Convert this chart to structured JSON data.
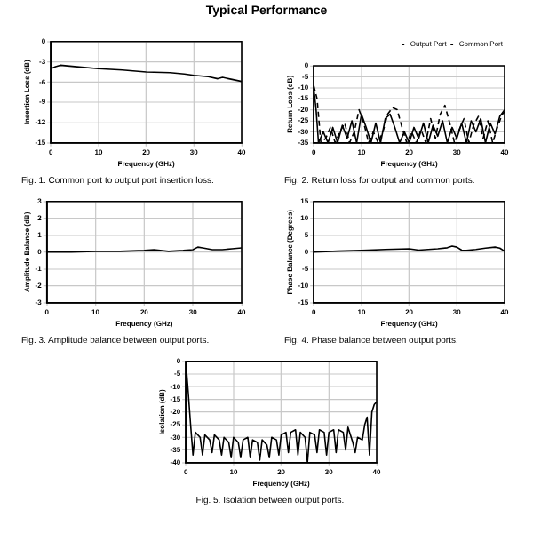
{
  "chart_data": [
    {
      "type": "other",
      "title": "Typical Performance"
    },
    {
      "type": "line",
      "xlabel": "Frequency (GHz)",
      "ylabel": "Insertion Loss (dB)",
      "xlim": [
        0,
        40
      ],
      "xticks": [
        0,
        10,
        20,
        30,
        40
      ],
      "ylim": [
        -15,
        0
      ],
      "yticks": [
        -15,
        -12,
        -9,
        -6,
        -3,
        0
      ],
      "grid": true,
      "marker": "none",
      "annotations": [
        "Fig. 1.  Common port to output port insertion loss."
      ],
      "series": [
        {
          "color": "#000000",
          "x": [
            0,
            1,
            2,
            5,
            10,
            15,
            20,
            25,
            28,
            30,
            33,
            35,
            36,
            38,
            40
          ],
          "values": [
            -4,
            -3.7,
            -3.5,
            -3.7,
            -4,
            -4.2,
            -4.5,
            -4.6,
            -4.8,
            -5,
            -5.2,
            -5.5,
            -5.3,
            -5.6,
            -5.9
          ]
        }
      ]
    },
    {
      "type": "line",
      "xlabel": "Frequency (GHz)",
      "ylabel": "Return Loss (dB)",
      "xlim": [
        0,
        40
      ],
      "xticks": [
        0,
        10,
        20,
        30,
        40
      ],
      "ylim": [
        -35,
        0
      ],
      "yticks": [
        -35,
        -30,
        -25,
        -20,
        -15,
        -10,
        -5,
        0
      ],
      "grid": true,
      "marker": "none",
      "legend": "top right",
      "annotations": [
        "Fig. 2.  Return loss for output and common ports."
      ],
      "series": [
        {
          "name": "Output Port",
          "color": "#000000",
          "line_style": "solid",
          "x": [
            0,
            0.5,
            1,
            2,
            3,
            4,
            5,
            6,
            7,
            8,
            9,
            10,
            11,
            12,
            13,
            14,
            15,
            16,
            17,
            18,
            19,
            20,
            21,
            22,
            23,
            24,
            25,
            26,
            27,
            28,
            29,
            30,
            31,
            32,
            33,
            34,
            35,
            36,
            37,
            38,
            39,
            40
          ],
          "values": [
            -10,
            -20,
            -35,
            -30,
            -35,
            -28,
            -35,
            -27,
            -33,
            -25,
            -35,
            -22,
            -28,
            -35,
            -26,
            -35,
            -24,
            -22,
            -28,
            -35,
            -30,
            -35,
            -28,
            -33,
            -26,
            -35,
            -27,
            -32,
            -25,
            -35,
            -28,
            -33,
            -26,
            -35,
            -25,
            -30,
            -24,
            -35,
            -26,
            -31,
            -23,
            -20
          ]
        },
        {
          "name": "Common Port",
          "color": "#000000",
          "line_style": "dashed",
          "x": [
            0,
            0.7,
            1.5,
            2.5,
            3.5,
            4.5,
            5.5,
            6.5,
            7.5,
            8.5,
            9.5,
            10.5,
            11.5,
            12.5,
            13.5,
            14.5,
            15.5,
            16.5,
            17.5,
            18.5,
            19.5,
            20.5,
            21.5,
            22.5,
            23.5,
            24.5,
            25.5,
            26.5,
            27.5,
            28.5,
            29.5,
            30.5,
            31.5,
            32.5,
            33.5,
            34.5,
            35.5,
            36.5,
            37.5,
            38.5,
            39.5,
            40
          ],
          "values": [
            -9,
            -15,
            -35,
            -33,
            -28,
            -35,
            -30,
            -26,
            -35,
            -30,
            -20,
            -26,
            -35,
            -30,
            -35,
            -30,
            -22,
            -19,
            -20,
            -28,
            -35,
            -30,
            -35,
            -29,
            -35,
            -24,
            -33,
            -22,
            -18,
            -26,
            -35,
            -29,
            -24,
            -35,
            -27,
            -23,
            -33,
            -25,
            -35,
            -28,
            -22,
            -21
          ]
        }
      ]
    },
    {
      "type": "line",
      "xlabel": "Frequency (GHz)",
      "ylabel": "Amplitude Balance (dB)",
      "xlim": [
        0,
        40
      ],
      "xticks": [
        0,
        10,
        20,
        30,
        40
      ],
      "ylim": [
        -3,
        3
      ],
      "yticks": [
        -3,
        -2,
        -1,
        0,
        1,
        2,
        3
      ],
      "grid": true,
      "marker": "none",
      "annotations": [
        "Fig. 3.  Amplitude balance between output ports."
      ],
      "series": [
        {
          "color": "#000000",
          "x": [
            0,
            5,
            10,
            15,
            20,
            22,
            25,
            28,
            30,
            31,
            32,
            34,
            36,
            38,
            40
          ],
          "values": [
            0,
            0,
            0.05,
            0.05,
            0.1,
            0.15,
            0.05,
            0.1,
            0.15,
            0.3,
            0.25,
            0.15,
            0.15,
            0.2,
            0.25
          ]
        }
      ]
    },
    {
      "type": "line",
      "xlabel": "Frequency (GHz)",
      "ylabel": "Phase Balance (Degrees)",
      "xlim": [
        0,
        40
      ],
      "xticks": [
        0,
        10,
        20,
        30,
        40
      ],
      "ylim": [
        -15,
        15
      ],
      "yticks": [
        -15,
        -10,
        -5,
        0,
        5,
        10,
        15
      ],
      "grid": true,
      "marker": "none",
      "annotations": [
        "Fig. 4.  Phase balance between output ports."
      ],
      "series": [
        {
          "color": "#000000",
          "x": [
            0,
            5,
            10,
            15,
            20,
            22,
            24,
            26,
            28,
            29,
            30,
            31,
            32,
            34,
            36,
            38,
            39,
            40
          ],
          "values": [
            0,
            0.3,
            0.5,
            0.8,
            1,
            0.6,
            0.8,
            1,
            1.3,
            1.8,
            1.5,
            0.6,
            0.5,
            0.8,
            1.2,
            1.5,
            1.2,
            0.3
          ]
        }
      ]
    },
    {
      "type": "line",
      "xlabel": "Frequency (GHz)",
      "ylabel": "Isolation (dB)",
      "xlim": [
        0,
        40
      ],
      "xticks": [
        0,
        10,
        20,
        30,
        40
      ],
      "ylim": [
        -40,
        0
      ],
      "yticks": [
        -40,
        -35,
        -30,
        -25,
        -20,
        -15,
        -10,
        -5,
        0
      ],
      "grid": true,
      "marker": "none",
      "annotations": [
        "Fig. 5.  Isolation between output ports."
      ],
      "series": [
        {
          "color": "#000000",
          "x": [
            0,
            0.5,
            1,
            1.5,
            2,
            3,
            3.5,
            4,
            5,
            5.5,
            6,
            7,
            7.5,
            8,
            9,
            9.5,
            10,
            11,
            11.5,
            12,
            13,
            13.5,
            14,
            15,
            15.5,
            16,
            17,
            17.5,
            18,
            19,
            19.5,
            20,
            21,
            21.5,
            22,
            23,
            23.5,
            24,
            25,
            25.5,
            26,
            27,
            27.5,
            28,
            29,
            29.5,
            30,
            31,
            31.5,
            32,
            33,
            33.5,
            34,
            35,
            35.5,
            36,
            37,
            37.5,
            38,
            38.5,
            39,
            39.5,
            40
          ],
          "values": [
            0,
            -12,
            -25,
            -37,
            -28,
            -30,
            -37,
            -29,
            -31,
            -36,
            -29,
            -31,
            -37,
            -30,
            -32,
            -38,
            -30,
            -32,
            -38,
            -31,
            -30,
            -38,
            -31,
            -32,
            -39,
            -31,
            -33,
            -38,
            -30,
            -31,
            -37,
            -29,
            -28,
            -36,
            -28,
            -27,
            -37,
            -28,
            -30,
            -40,
            -28,
            -29,
            -36,
            -27,
            -28,
            -37,
            -28,
            -27,
            -36,
            -27,
            -28,
            -35,
            -26,
            -32,
            -36,
            -30,
            -31,
            -25,
            -22,
            -37,
            -20,
            -17,
            -16
          ]
        }
      ]
    }
  ]
}
